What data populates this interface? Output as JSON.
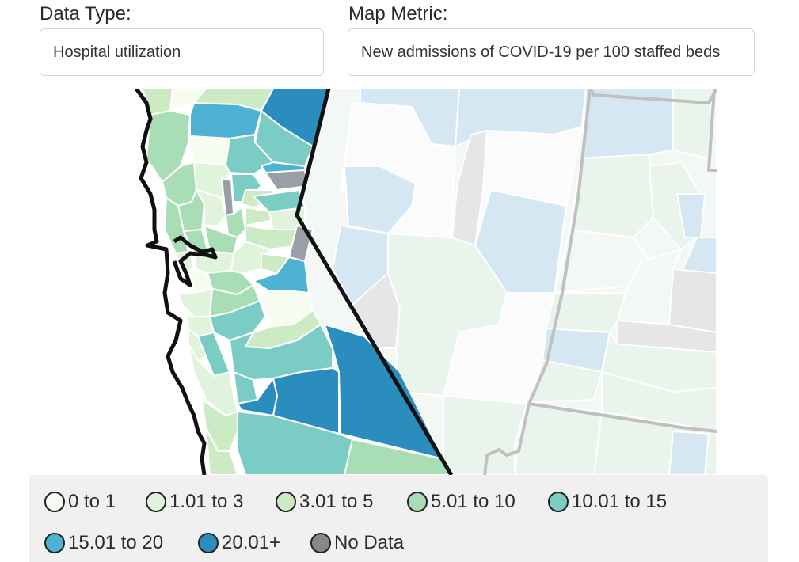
{
  "controls": {
    "data_type": {
      "label": "Data Type:",
      "value": "Hospital utilization"
    },
    "map_metric": {
      "label": "Map Metric:",
      "value": "New admissions of COVID-19 per 100 staffed beds"
    }
  },
  "legend": {
    "items": [
      {
        "label": "0 to 1",
        "color": "#f7fcf0"
      },
      {
        "label": "1.01 to 3",
        "color": "#e0f3db"
      },
      {
        "label": "3.01 to 5",
        "color": "#ccebc5"
      },
      {
        "label": "5.01 to 10",
        "color": "#a8ddb5"
      },
      {
        "label": "10.01 to 15",
        "color": "#7bccc4"
      },
      {
        "label": "15.01 to 20",
        "color": "#4eb3d3"
      },
      {
        "label": "20.01+",
        "color": "#2b8cbe"
      },
      {
        "label": "No Data",
        "color": "#888888"
      }
    ]
  },
  "map": {
    "colors": {
      "c0": "#f7fcf0",
      "c1": "#e0f3db",
      "c2": "#ccebc5",
      "c3": "#a8ddb5",
      "c4": "#7bccc4",
      "c5": "#4eb3d3",
      "c6": "#2b8cbe",
      "nodata": "#9a9ea6",
      "ext_pale": "#f4f8f4",
      "ext_light": "#e8f4ec",
      "ext_blue": "#d4e7f2",
      "ext_gray": "#e6e6e8",
      "ext_white": "#fbfbfb"
    }
  }
}
